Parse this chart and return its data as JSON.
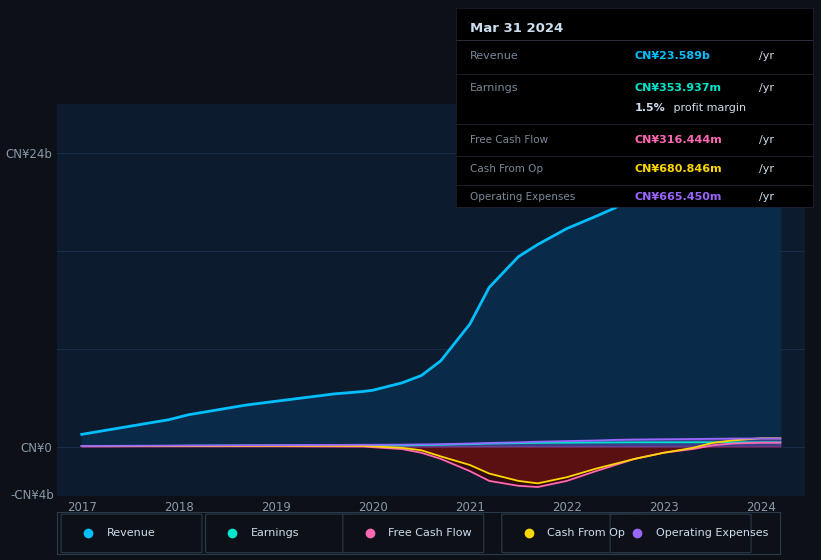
{
  "bg_color": "#0d1117",
  "plot_bg_color": "#0d1b2e",
  "years": [
    2017.0,
    2017.3,
    2017.6,
    2017.9,
    2018.1,
    2018.4,
    2018.7,
    2019.0,
    2019.3,
    2019.6,
    2019.9,
    2020.0,
    2020.3,
    2020.5,
    2020.7,
    2021.0,
    2021.2,
    2021.5,
    2021.7,
    2022.0,
    2022.3,
    2022.5,
    2022.7,
    2023.0,
    2023.3,
    2023.5,
    2023.7,
    2024.0,
    2024.2
  ],
  "revenue": [
    1.0,
    1.4,
    1.8,
    2.2,
    2.6,
    3.0,
    3.4,
    3.7,
    4.0,
    4.3,
    4.5,
    4.6,
    5.2,
    5.8,
    7.0,
    10.0,
    13.0,
    15.5,
    16.5,
    17.8,
    18.8,
    19.5,
    20.5,
    21.5,
    22.5,
    23.0,
    23.3,
    23.589,
    23.589
  ],
  "earnings": [
    0.05,
    0.05,
    0.06,
    0.06,
    0.07,
    0.08,
    0.08,
    0.09,
    0.1,
    0.1,
    0.1,
    0.09,
    0.1,
    0.12,
    0.15,
    0.2,
    0.25,
    0.28,
    0.3,
    0.32,
    0.33,
    0.34,
    0.35,
    0.35,
    0.354,
    0.354,
    0.354,
    0.354,
    0.354
  ],
  "free_cash_flow": [
    0.03,
    0.03,
    0.04,
    0.04,
    0.04,
    0.04,
    0.04,
    0.04,
    0.03,
    0.02,
    0.01,
    -0.05,
    -0.2,
    -0.5,
    -1.0,
    -2.0,
    -2.8,
    -3.2,
    -3.3,
    -2.8,
    -2.0,
    -1.5,
    -1.0,
    -0.5,
    -0.2,
    0.1,
    0.25,
    0.316,
    0.316
  ],
  "cash_from_op": [
    0.04,
    0.04,
    0.05,
    0.05,
    0.06,
    0.06,
    0.07,
    0.07,
    0.07,
    0.07,
    0.06,
    0.02,
    -0.1,
    -0.3,
    -0.8,
    -1.5,
    -2.2,
    -2.8,
    -3.0,
    -2.5,
    -1.8,
    -1.4,
    -1.0,
    -0.5,
    -0.1,
    0.3,
    0.5,
    0.681,
    0.681
  ],
  "operating_expenses": [
    0.05,
    0.06,
    0.07,
    0.08,
    0.09,
    0.1,
    0.11,
    0.12,
    0.13,
    0.14,
    0.15,
    0.15,
    0.16,
    0.18,
    0.2,
    0.25,
    0.3,
    0.35,
    0.4,
    0.45,
    0.5,
    0.55,
    0.58,
    0.6,
    0.62,
    0.64,
    0.655,
    0.665,
    0.665
  ],
  "revenue_color": "#00bfff",
  "earnings_color": "#00e5cc",
  "free_cash_flow_color": "#ff69b4",
  "cash_from_op_color": "#ffd700",
  "operating_expenses_color": "#9966ff",
  "fill_revenue_color": "#0a2a4a",
  "fill_neg_color": "#5a1010",
  "ylim": [
    -4,
    28
  ],
  "grid_color": "#1a3050",
  "info_box": {
    "date": "Mar 31 2024",
    "revenue_val": "CN¥23.589b",
    "earnings_val": "CN¥353.937m",
    "profit_margin": "1.5%",
    "free_cash_flow_val": "CN¥316.444m",
    "cash_from_op_val": "CN¥680.846m",
    "operating_expenses_val": "CN¥665.450m"
  },
  "legend_items": [
    "Revenue",
    "Earnings",
    "Free Cash Flow",
    "Cash From Op",
    "Operating Expenses"
  ],
  "legend_colors": [
    "#00bfff",
    "#00e5cc",
    "#ff69b4",
    "#ffd700",
    "#9966ff"
  ]
}
